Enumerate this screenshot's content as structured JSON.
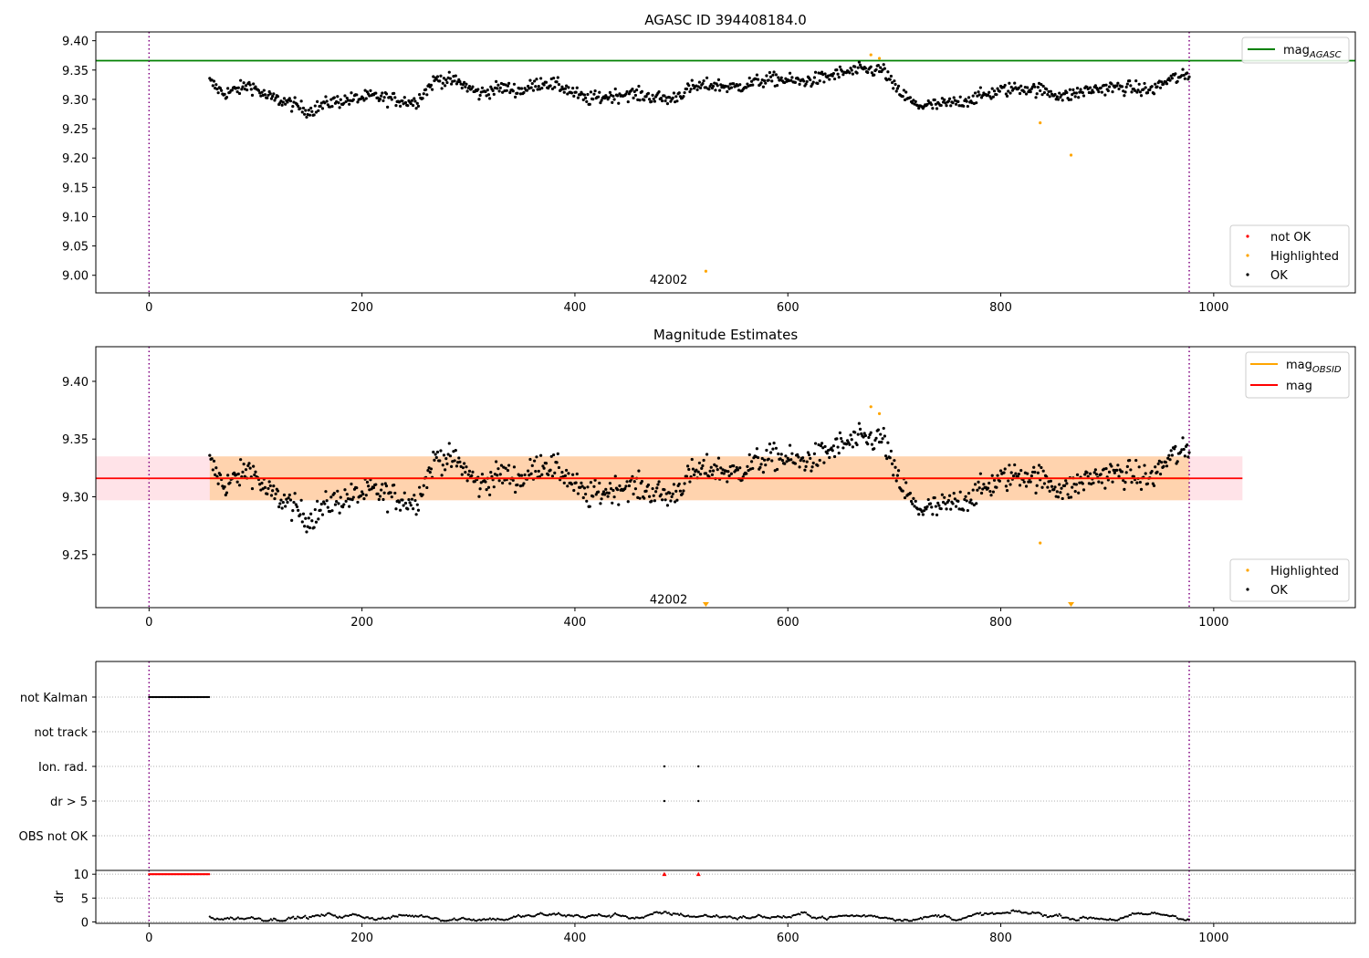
{
  "chart_data": [
    {
      "type": "scatter",
      "title": "AGASC ID 394408184.0",
      "xlim": [
        -50,
        1133
      ],
      "ylim": [
        8.97,
        9.415
      ],
      "xticks": [
        0,
        200,
        400,
        600,
        800,
        1000
      ],
      "yticks": [
        "9.00",
        "9.05",
        "9.10",
        "9.15",
        "9.20",
        "9.25",
        "9.30",
        "9.35",
        "9.40"
      ],
      "vlines": [
        0,
        977
      ],
      "agasc_mag": 9.366,
      "annotation": {
        "text": "42002",
        "x": 488,
        "y": 8.99
      },
      "legend_lines": [
        {
          "main": "mag",
          "sub": "AGASC",
          "color": "#008000"
        }
      ],
      "legend_points": [
        {
          "label": "not OK",
          "color": "#ff0000"
        },
        {
          "label": "Highlighted",
          "color": "#ffa500"
        },
        {
          "label": "OK",
          "color": "#000000"
        }
      ],
      "highlighted": [
        [
          678,
          9.376
        ],
        [
          686,
          9.37
        ],
        [
          523,
          9.007
        ],
        [
          837,
          9.26
        ],
        [
          866,
          9.205
        ]
      ],
      "ok_series": {
        "x_start": 57,
        "x_end": 977,
        "knots_x": [
          57,
          70,
          80,
          95,
          110,
          130,
          150,
          170,
          190,
          210,
          230,
          250,
          270,
          290,
          310,
          330,
          350,
          370,
          390,
          410,
          430,
          450,
          470,
          490,
          510,
          530,
          550,
          570,
          590,
          610,
          630,
          650,
          670,
          690,
          700,
          720,
          740,
          760,
          780,
          800,
          820,
          840,
          860,
          880,
          900,
          920,
          940,
          960,
          977
        ],
        "knots_y": [
          9.33,
          9.31,
          9.315,
          9.325,
          9.305,
          9.295,
          9.28,
          9.295,
          9.3,
          9.305,
          9.3,
          9.295,
          9.335,
          9.33,
          9.31,
          9.32,
          9.315,
          9.33,
          9.32,
          9.3,
          9.305,
          9.31,
          9.305,
          9.3,
          9.32,
          9.325,
          9.32,
          9.33,
          9.335,
          9.33,
          9.335,
          9.345,
          9.35,
          9.35,
          9.32,
          9.29,
          9.29,
          9.295,
          9.305,
          9.315,
          9.32,
          9.315,
          9.305,
          9.315,
          9.32,
          9.32,
          9.315,
          9.335,
          9.34
        ],
        "noise": 0.008
      }
    },
    {
      "type": "scatter",
      "title": "Magnitude Estimates",
      "xlim": [
        -50,
        1133
      ],
      "ylim": [
        9.204,
        9.43
      ],
      "xticks": [
        0,
        200,
        400,
        600,
        800,
        1000
      ],
      "yticks": [
        "9.25",
        "9.30",
        "9.35",
        "9.40"
      ],
      "vlines": [
        0,
        977
      ],
      "mag": 9.316,
      "mag_obsid": 9.316,
      "band_mag": [
        9.297,
        9.335
      ],
      "band_obsid": [
        9.297,
        9.335
      ],
      "band_x": [
        -50,
        1027
      ],
      "band_obsid_x": [
        57,
        977
      ],
      "annotation": {
        "text": "42002",
        "x": 488,
        "y": 9.21
      },
      "legend_lines": [
        {
          "main": "mag",
          "sub": "OBSID",
          "color": "#ffa500"
        },
        {
          "main": "mag",
          "sub": "",
          "color": "#ff0000"
        }
      ],
      "legend_points": [
        {
          "label": "Highlighted",
          "color": "#ffa500"
        },
        {
          "label": "OK",
          "color": "#000000"
        }
      ],
      "highlighted": [
        [
          678,
          9.378
        ],
        [
          686,
          9.372
        ],
        [
          837,
          9.26
        ]
      ],
      "offscale_markers": [
        523,
        866
      ]
    },
    {
      "type": "flags",
      "xlim": [
        -50,
        1133
      ],
      "xticks": [
        0,
        200,
        400,
        600,
        800,
        1000
      ],
      "vlines": [
        0,
        977
      ],
      "rows": [
        "not Kalman",
        "not track",
        "Ion. rad.",
        "dr > 5",
        "OBS not OK"
      ],
      "not_kalman_range": [
        0,
        57
      ],
      "ion_rad_points": [
        484,
        516
      ],
      "dr5_points": [
        484,
        516
      ]
    },
    {
      "type": "scatter",
      "ylabel": "dr",
      "xlim": [
        -50,
        1133
      ],
      "ylim": [
        -0.3,
        10.8
      ],
      "xticks": [
        0,
        200,
        400,
        600,
        800,
        1000
      ],
      "yticks": [
        "0",
        "5",
        "10"
      ],
      "vlines": [
        0,
        977
      ],
      "capped_value": 10,
      "capped_ranges": [
        [
          0,
          57
        ]
      ],
      "capped_points": [
        484,
        516
      ],
      "dr_range": [
        0.2,
        2.8
      ]
    }
  ]
}
